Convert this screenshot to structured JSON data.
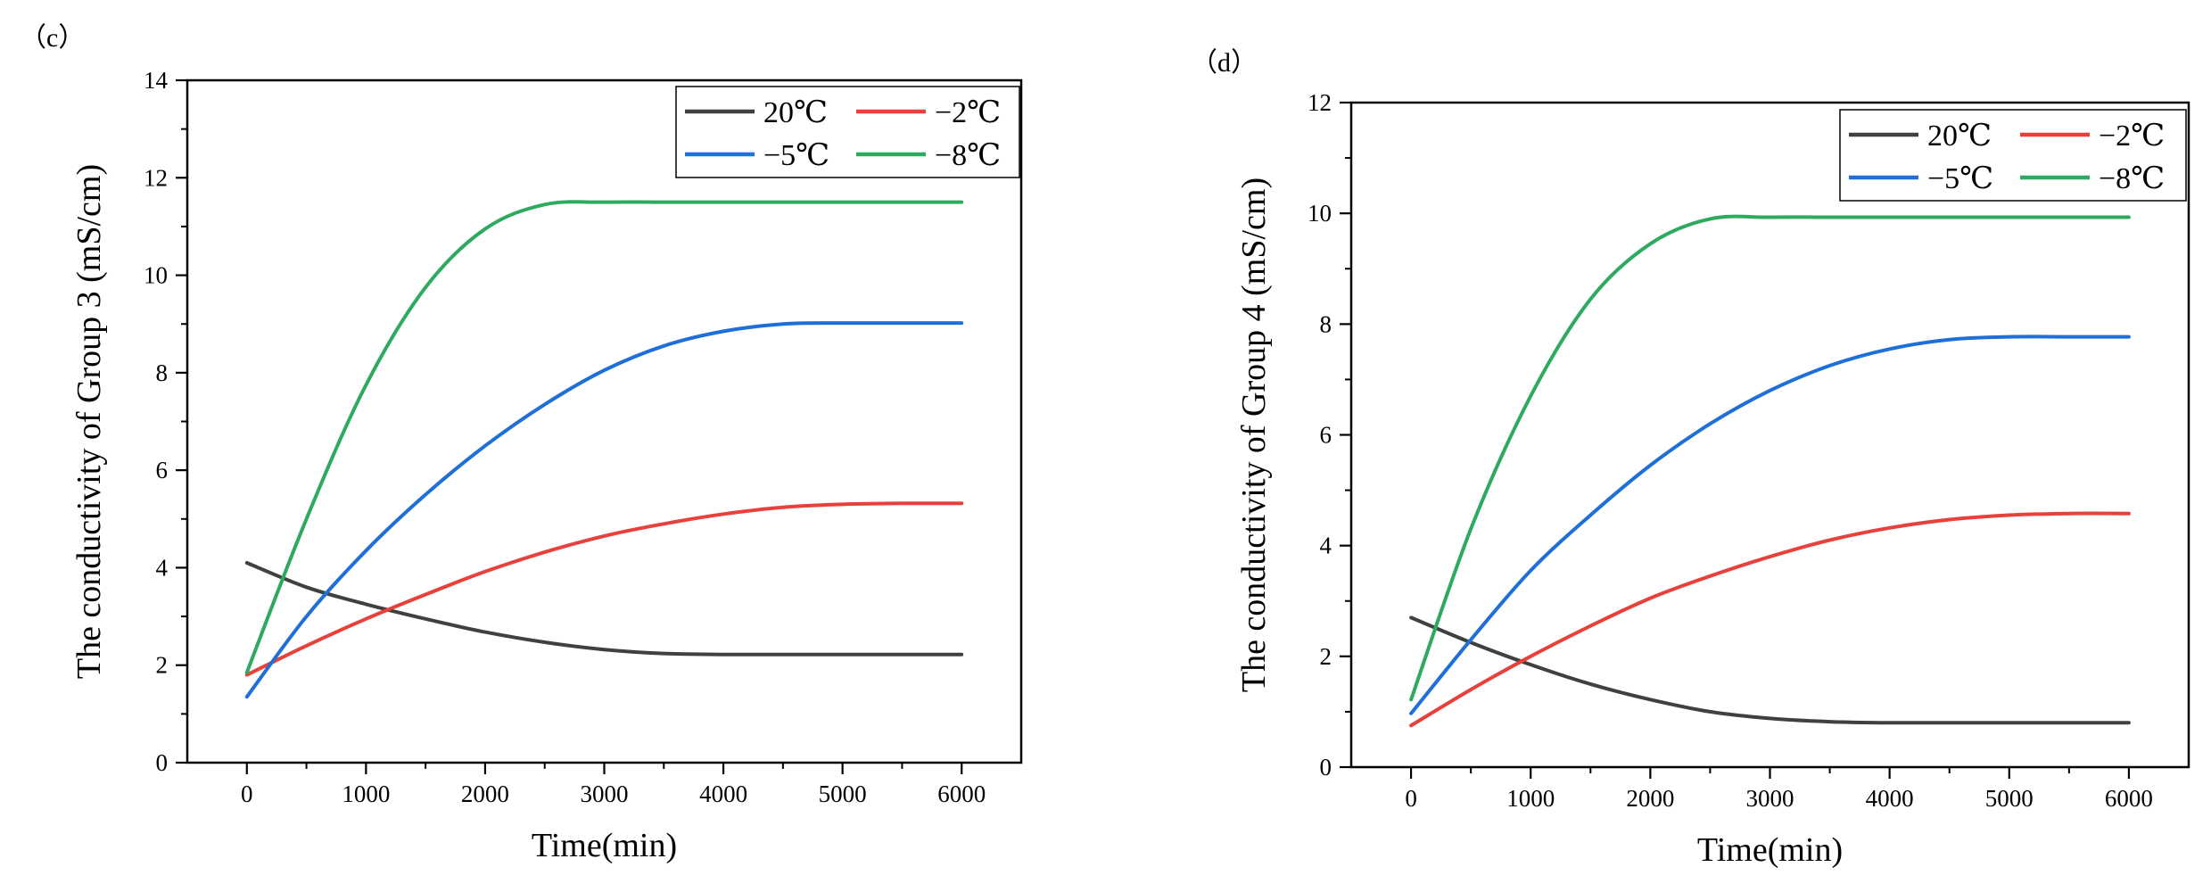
{
  "chart_data": [
    {
      "type": "line",
      "panel_label": "（c）",
      "title": "",
      "xlabel": "Time(min)",
      "ylabel": "The conductivity of Group 3 (mS/cm)",
      "xlim": [
        -500,
        6500
      ],
      "ylim": [
        0,
        14
      ],
      "xticks": [
        0,
        1000,
        2000,
        3000,
        4000,
        5000,
        6000
      ],
      "xtick_labels": [
        "0",
        "1000",
        "2000",
        "3000",
        "4000",
        "5000",
        "6000"
      ],
      "yticks": [
        0,
        2,
        4,
        6,
        8,
        10,
        12,
        14
      ],
      "ytick_labels": [
        "0",
        "2",
        "4",
        "6",
        "8",
        "10",
        "12",
        "14"
      ],
      "grid": false,
      "legend": "top-right",
      "x": [
        0,
        500,
        1000,
        1500,
        2000,
        2500,
        3000,
        3500,
        4000,
        4500,
        5000,
        5500,
        6000
      ],
      "series": [
        {
          "name": "20℃",
          "color": "#404040",
          "values": [
            4.1,
            3.6,
            3.25,
            2.95,
            2.68,
            2.47,
            2.32,
            2.24,
            2.22,
            2.22,
            2.22,
            2.22,
            2.22
          ]
        },
        {
          "name": "−2℃",
          "color": "#e8413c",
          "values": [
            1.8,
            2.4,
            2.95,
            3.45,
            3.92,
            4.32,
            4.65,
            4.9,
            5.1,
            5.24,
            5.3,
            5.32,
            5.32
          ]
        },
        {
          "name": "−5℃",
          "color": "#1f6fd8",
          "values": [
            1.35,
            3.0,
            4.35,
            5.5,
            6.5,
            7.35,
            8.05,
            8.55,
            8.85,
            9.0,
            9.02,
            9.02,
            9.02
          ]
        },
        {
          "name": "−8℃",
          "color": "#2eaa60",
          "values": [
            1.85,
            5.0,
            7.75,
            9.75,
            10.95,
            11.45,
            11.5,
            11.5,
            11.5,
            11.5,
            11.5,
            11.5,
            11.5
          ]
        }
      ]
    },
    {
      "type": "line",
      "panel_label": "（d）",
      "title": "",
      "xlabel": "Time(min)",
      "ylabel": "The conductivity of Group 4 (mS/cm)",
      "xlim": [
        -500,
        6500
      ],
      "ylim": [
        0,
        12
      ],
      "xticks": [
        0,
        1000,
        2000,
        3000,
        4000,
        5000,
        6000
      ],
      "xtick_labels": [
        "0",
        "1000",
        "2000",
        "3000",
        "4000",
        "5000",
        "6000"
      ],
      "yticks": [
        0,
        2,
        4,
        6,
        8,
        10,
        12
      ],
      "ytick_labels": [
        "0",
        "2",
        "4",
        "6",
        "8",
        "10",
        "12"
      ],
      "grid": false,
      "legend": "top-right",
      "x": [
        0,
        500,
        1000,
        1500,
        2000,
        2500,
        3000,
        3500,
        4000,
        4500,
        5000,
        5500,
        6000
      ],
      "series": [
        {
          "name": "20℃",
          "color": "#404040",
          "values": [
            2.7,
            2.25,
            1.85,
            1.5,
            1.22,
            1.0,
            0.88,
            0.82,
            0.8,
            0.8,
            0.8,
            0.8,
            0.8
          ]
        },
        {
          "name": "−2℃",
          "color": "#e8413c",
          "values": [
            0.75,
            1.4,
            2.0,
            2.55,
            3.05,
            3.45,
            3.8,
            4.1,
            4.32,
            4.47,
            4.55,
            4.58,
            4.58
          ]
        },
        {
          "name": "−5℃",
          "color": "#1f6fd8",
          "values": [
            0.97,
            2.3,
            3.55,
            4.55,
            5.45,
            6.2,
            6.8,
            7.25,
            7.55,
            7.72,
            7.77,
            7.77,
            7.77
          ]
        },
        {
          "name": "−8℃",
          "color": "#2eaa60",
          "values": [
            1.22,
            4.3,
            6.7,
            8.45,
            9.45,
            9.9,
            9.93,
            9.93,
            9.93,
            9.93,
            9.93,
            9.93,
            9.93
          ]
        }
      ]
    }
  ]
}
